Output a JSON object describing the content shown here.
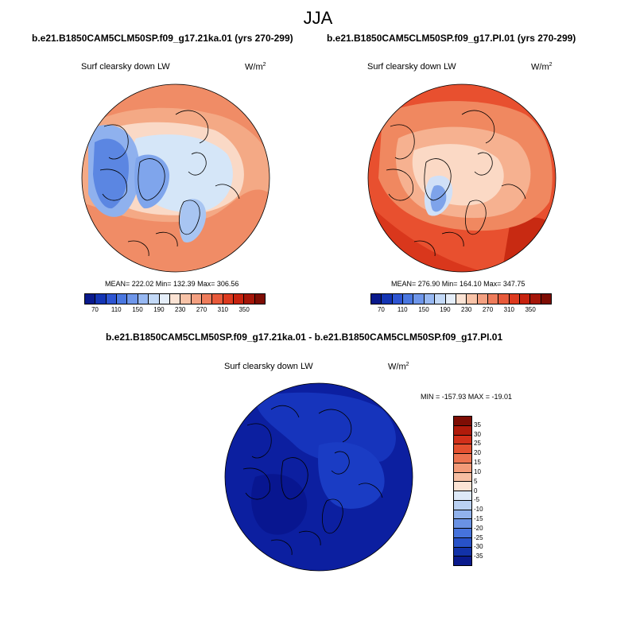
{
  "main_title": "JJA",
  "unit_base": "W/m",
  "unit_exp": "2",
  "panels": [
    {
      "title": "b.e21.B1850CAM5CLM50SP.f09_g17.21ka.01 (yrs 270-299)",
      "variable": "Surf clearsky down LW",
      "stats": "MEAN= 222.02  Min= 132.39  Max= 306.56"
    },
    {
      "title": "b.e21.B1850CAM5CLM50SP.f09_g17.PI.01 (yrs 270-299)",
      "variable": "Surf clearsky down LW",
      "stats": "MEAN= 276.90  Min= 164.10  Max= 347.75"
    },
    {
      "title": "b.e21.B1850CAM5CLM50SP.f09_g17.21ka.01 - b.e21.B1850CAM5CLM50SP.f09_g17.PI.01",
      "variable": "Surf clearsky down LW",
      "stats": "MIN = -157.93 MAX = -19.01"
    }
  ],
  "abs_colorbar": {
    "labels": [
      "70",
      "110",
      "150",
      "190",
      "230",
      "270",
      "310",
      "350"
    ],
    "colors": [
      "#0a1a8c",
      "#1435b4",
      "#2e55d2",
      "#4a77e0",
      "#6e96ea",
      "#97b8f2",
      "#c3d9f7",
      "#e5eef9",
      "#fbe3d4",
      "#f8c3a8",
      "#f3a081",
      "#ee7c5b",
      "#e85a3b",
      "#dd3a1f",
      "#c7230f",
      "#a51609",
      "#7e0d04"
    ]
  },
  "diff_colorbar": {
    "labels": [
      "35",
      "30",
      "25",
      "20",
      "15",
      "10",
      "5",
      "0",
      "-5",
      "-10",
      "-15",
      "-20",
      "-25",
      "-30",
      "-35"
    ],
    "colors": [
      "#7e0d04",
      "#b01b0b",
      "#d2301a",
      "#e4502f",
      "#ec7350",
      "#f29a78",
      "#f6bea2",
      "#fbe3d4",
      "#dde9f8",
      "#b9d0f2",
      "#91b2ec",
      "#6a92e4",
      "#4673dc",
      "#2852c8",
      "#1232a8",
      "#0a1a8c"
    ]
  }
}
